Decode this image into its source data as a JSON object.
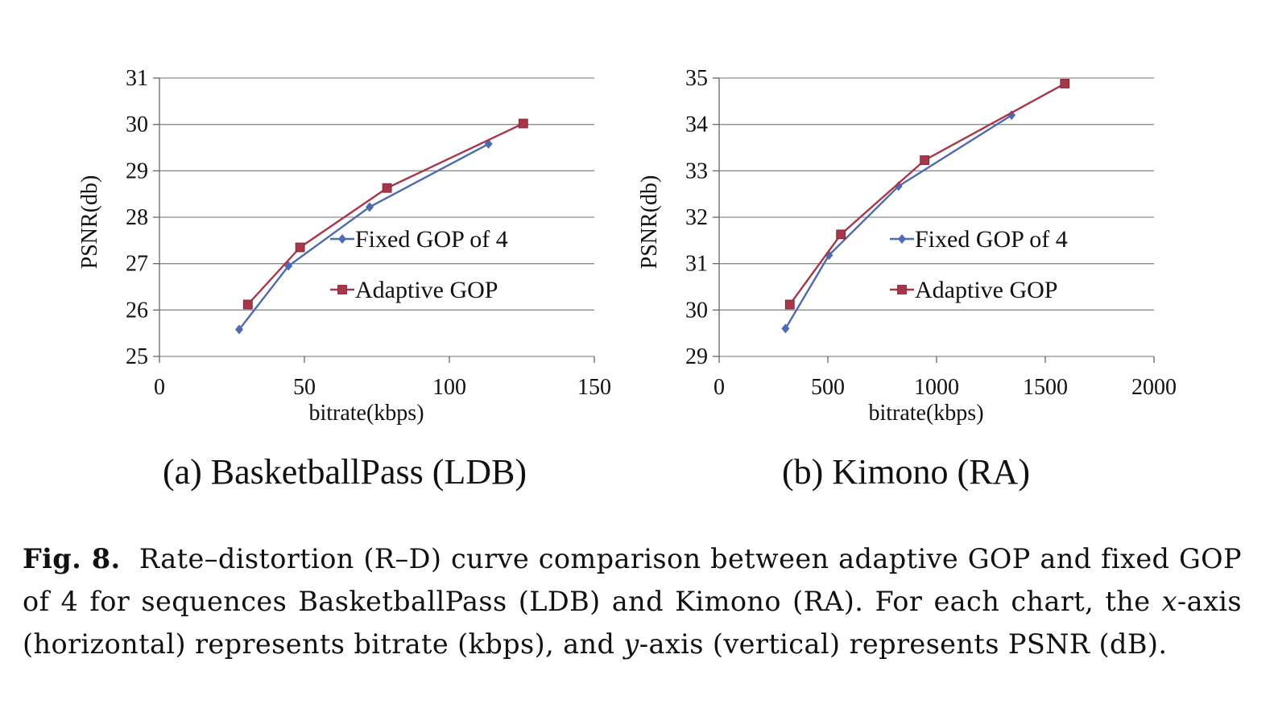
{
  "chart_data": [
    {
      "type": "line",
      "subtitle": "(a)  BasketballPass (LDB)",
      "xlabel": "bitrate(kbps)",
      "ylabel": "PSNR(db)",
      "xlim": [
        0,
        150
      ],
      "ylim": [
        25,
        31
      ],
      "xticks": [
        0,
        50,
        100,
        150
      ],
      "yticks": [
        25,
        26,
        27,
        28,
        29,
        30,
        31
      ],
      "grid": "horizontal",
      "legend": "center",
      "series": [
        {
          "name": "Fixed GOP of 4",
          "color": "#4F6AAE",
          "marker": "diamond",
          "x": [
            27.5,
            44.5,
            72.5,
            113.5
          ],
          "y": [
            25.58,
            26.95,
            28.22,
            29.58
          ]
        },
        {
          "name": "Adaptive GOP",
          "color": "#A8364A",
          "marker": "square",
          "x": [
            30.5,
            48.5,
            78.5,
            125.5
          ],
          "y": [
            26.12,
            27.35,
            28.63,
            30.02
          ]
        }
      ]
    },
    {
      "type": "line",
      "subtitle": "(b)  Kimono (RA)",
      "xlabel": "bitrate(kbps)",
      "ylabel": "PSNR(db)",
      "xlim": [
        0,
        2000
      ],
      "ylim": [
        29,
        35
      ],
      "xticks": [
        0,
        500,
        1000,
        1500,
        2000
      ],
      "yticks": [
        29,
        30,
        31,
        32,
        33,
        34,
        35
      ],
      "grid": "horizontal",
      "legend": "center",
      "series": [
        {
          "name": "Fixed GOP of 4",
          "color": "#4F6AAE",
          "marker": "diamond",
          "x": [
            305,
            505,
            825,
            1345
          ],
          "y": [
            29.6,
            31.18,
            32.67,
            34.2
          ]
        },
        {
          "name": "Adaptive GOP",
          "color": "#A8364A",
          "marker": "square",
          "x": [
            325,
            560,
            945,
            1590
          ],
          "y": [
            30.12,
            31.63,
            33.23,
            34.88
          ]
        }
      ]
    }
  ],
  "caption": {
    "label": "Fig. 8.",
    "text_1": "Rate–distortion (R–D) curve comparison between adaptive GOP and fixed GOP of 4 for sequences BasketballPass (LDB) and Kimono (RA). For each chart, the ",
    "x_var": "x",
    "text_2": "-axis (horizontal) represents bitrate (kbps), and ",
    "y_var": "y",
    "text_3": "-axis (vertical) represents PSNR (dB)."
  }
}
